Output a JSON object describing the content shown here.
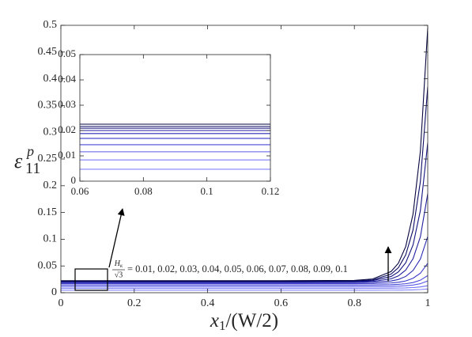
{
  "chart_data": {
    "type": "line",
    "xlabel": {
      "base": "x",
      "sub": "1",
      "rest": "/(W/2)"
    },
    "ylabel": {
      "base": "ε",
      "sup": "p",
      "sub": "11"
    },
    "annotation": {
      "numerator": "H",
      "numerator_sub": "κ",
      "denominator": "√3",
      "text": "= 0.01, 0.02, 0.03, 0.04, 0.05, 0.06, 0.07, 0.08, 0.09, 0.1"
    },
    "xlim": [
      0,
      1
    ],
    "ylim": [
      0,
      0.5
    ],
    "xticks": [
      0,
      0.2,
      0.4,
      0.6,
      0.8,
      1
    ],
    "yticks": [
      0,
      0.05,
      0.1,
      0.15,
      0.2,
      0.25,
      0.3,
      0.35,
      0.4,
      0.45,
      0.5
    ],
    "x": [
      0,
      0.2,
      0.4,
      0.6,
      0.8,
      0.85,
      0.9,
      0.92,
      0.94,
      0.96,
      0.98,
      1
    ],
    "series": [
      {
        "color": "#8080ff",
        "values": [
          0.0047,
          0.0047,
          0.0047,
          0.0047,
          0.0047,
          0.0047,
          0.0048,
          0.0049,
          0.005,
          0.0053,
          0.0059,
          0.007
        ]
      },
      {
        "color": "#6c6cf5",
        "values": [
          0.0084,
          0.0084,
          0.0084,
          0.0084,
          0.0084,
          0.0084,
          0.0086,
          0.0087,
          0.009,
          0.0096,
          0.0108,
          0.013
        ]
      },
      {
        "color": "#5a5ae8",
        "values": [
          0.0116,
          0.0116,
          0.0116,
          0.0116,
          0.0116,
          0.0117,
          0.012,
          0.0123,
          0.013,
          0.0143,
          0.0169,
          0.022
        ]
      },
      {
        "color": "#4848d8",
        "values": [
          0.0144,
          0.0144,
          0.0144,
          0.0144,
          0.0144,
          0.0145,
          0.015,
          0.0156,
          0.0168,
          0.019,
          0.0234,
          0.032
        ]
      },
      {
        "color": "#3838c8",
        "values": [
          0.0169,
          0.0169,
          0.0169,
          0.0169,
          0.0169,
          0.0172,
          0.0183,
          0.0195,
          0.022,
          0.027,
          0.0364,
          0.055
        ]
      },
      {
        "color": "#2a2ab4",
        "values": [
          0.0188,
          0.0188,
          0.0188,
          0.0188,
          0.0189,
          0.0194,
          0.0219,
          0.0247,
          0.0304,
          0.0416,
          0.063,
          0.105
        ]
      },
      {
        "color": "#1e1e9c",
        "values": [
          0.02,
          0.02,
          0.02,
          0.02,
          0.0202,
          0.0211,
          0.0259,
          0.0314,
          0.0423,
          0.0636,
          0.1046,
          0.185
        ]
      },
      {
        "color": "#141480",
        "values": [
          0.0209,
          0.0209,
          0.0209,
          0.0209,
          0.0212,
          0.0226,
          0.0302,
          0.0388,
          0.0559,
          0.0893,
          0.1538,
          0.28
        ]
      },
      {
        "color": "#0c0c64",
        "values": [
          0.0216,
          0.0216,
          0.0216,
          0.0216,
          0.0221,
          0.024,
          0.0347,
          0.0467,
          0.0707,
          0.1175,
          0.208,
          0.385
        ]
      },
      {
        "color": "#060640",
        "values": [
          0.0225,
          0.0225,
          0.0225,
          0.0225,
          0.0231,
          0.0257,
          0.0395,
          0.0551,
          0.0863,
          0.1472,
          0.2649,
          0.495
        ]
      }
    ],
    "inset": {
      "xlim": [
        0.06,
        0.12
      ],
      "ylim": [
        0,
        0.05
      ],
      "xticks": [
        0.06,
        0.08,
        0.1,
        0.12
      ],
      "yticks": [
        0,
        0.01,
        0.02,
        0.03,
        0.04,
        0.05
      ]
    }
  }
}
